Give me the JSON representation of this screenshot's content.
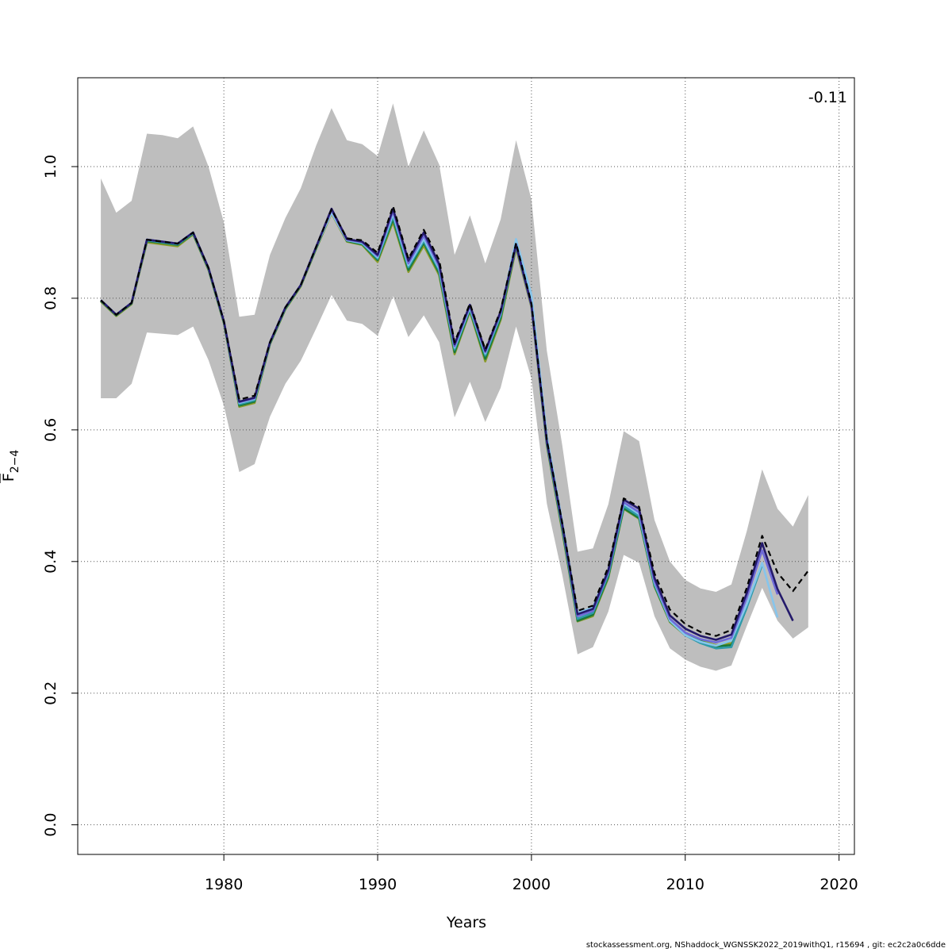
{
  "chart_data": {
    "type": "line",
    "xlabel": "Years",
    "ylabel": "F",
    "ylabel_sub": "2−4",
    "xlim": [
      1970.5,
      2021
    ],
    "ylim": [
      -0.045,
      1.135
    ],
    "xticks": [
      1980,
      1990,
      2000,
      2010,
      2020
    ],
    "xtick_labels": [
      "1980",
      "1990",
      "2000",
      "2010",
      "2020"
    ],
    "yticks": [
      0.0,
      0.2,
      0.4,
      0.6,
      0.8,
      1.0
    ],
    "ytick_labels": [
      "0.0",
      "0.2",
      "0.4",
      "0.6",
      "0.8",
      "1.0"
    ],
    "grid": true,
    "annotation": "-0.11",
    "band": {
      "color": "#bebebe",
      "x": [
        1972,
        1973,
        1974,
        1975,
        1976,
        1977,
        1978,
        1979,
        1980,
        1981,
        1982,
        1983,
        1984,
        1985,
        1986,
        1987,
        1988,
        1989,
        1990,
        1991,
        1992,
        1993,
        1994,
        1995,
        1996,
        1997,
        1998,
        1999,
        2000,
        2001,
        2002,
        2003,
        2004,
        2005,
        2006,
        2007,
        2008,
        2009,
        2010,
        2011,
        2012,
        2013,
        2014,
        2015,
        2016,
        2017,
        2018
      ],
      "upper": [
        0.982,
        0.93,
        0.948,
        1.05,
        1.048,
        1.043,
        1.061,
        1.0,
        0.915,
        0.772,
        0.775,
        0.866,
        0.922,
        0.967,
        1.032,
        1.089,
        1.04,
        1.034,
        1.016,
        1.096,
        1.0,
        1.055,
        1.003,
        0.866,
        0.926,
        0.853,
        0.92,
        1.04,
        0.95,
        0.72,
        0.577,
        0.415,
        0.42,
        0.487,
        0.598,
        0.583,
        0.463,
        0.4,
        0.372,
        0.359,
        0.354,
        0.365,
        0.446,
        0.54,
        0.48,
        0.453,
        0.501
      ],
      "lower": [
        0.648,
        0.648,
        0.67,
        0.748,
        0.746,
        0.744,
        0.757,
        0.706,
        0.637,
        0.536,
        0.548,
        0.62,
        0.67,
        0.705,
        0.754,
        0.805,
        0.766,
        0.761,
        0.743,
        0.803,
        0.741,
        0.774,
        0.733,
        0.619,
        0.673,
        0.612,
        0.664,
        0.757,
        0.678,
        0.488,
        0.38,
        0.259,
        0.27,
        0.324,
        0.41,
        0.398,
        0.317,
        0.268,
        0.251,
        0.24,
        0.234,
        0.242,
        0.302,
        0.36,
        0.31,
        0.283,
        0.3
      ]
    },
    "series": [
      {
        "color": "#000000",
        "dashed": true,
        "x": [
          1972,
          1973,
          1974,
          1975,
          1976,
          1977,
          1978,
          1979,
          1980,
          1981,
          1982,
          1983,
          1984,
          1985,
          1986,
          1987,
          1988,
          1989,
          1990,
          1991,
          1992,
          1993,
          1994,
          1995,
          1996,
          1997,
          1998,
          1999,
          2000,
          2001,
          2002,
          2003,
          2004,
          2005,
          2006,
          2007,
          2008,
          2009,
          2010,
          2011,
          2012,
          2013,
          2014,
          2015,
          2016,
          2017,
          2018
        ],
        "values": [
          0.797,
          0.775,
          0.793,
          0.889,
          0.886,
          0.883,
          0.9,
          0.846,
          0.765,
          0.646,
          0.652,
          0.733,
          0.786,
          0.82,
          0.878,
          0.935,
          0.891,
          0.888,
          0.869,
          0.94,
          0.86,
          0.904,
          0.858,
          0.733,
          0.792,
          0.722,
          0.782,
          0.884,
          0.792,
          0.585,
          0.459,
          0.325,
          0.333,
          0.392,
          0.496,
          0.483,
          0.382,
          0.327,
          0.305,
          0.293,
          0.287,
          0.296,
          0.36,
          0.439,
          0.383,
          0.355,
          0.386
        ]
      },
      {
        "color": "#241a6b",
        "dashed": false,
        "x": [
          1972,
          1973,
          1974,
          1975,
          1976,
          1977,
          1978,
          1979,
          1980,
          1981,
          1982,
          1983,
          1984,
          1985,
          1986,
          1987,
          1988,
          1989,
          1990,
          1991,
          1992,
          1993,
          1994,
          1995,
          1996,
          1997,
          1998,
          1999,
          2000,
          2001,
          2002,
          2003,
          2004,
          2005,
          2006,
          2007,
          2008,
          2009,
          2010,
          2011,
          2012,
          2013,
          2014,
          2015,
          2016,
          2017
        ],
        "values": [
          0.797,
          0.775,
          0.793,
          0.889,
          0.886,
          0.883,
          0.9,
          0.846,
          0.765,
          0.643,
          0.649,
          0.733,
          0.786,
          0.82,
          0.878,
          0.936,
          0.89,
          0.886,
          0.866,
          0.936,
          0.857,
          0.9,
          0.852,
          0.73,
          0.79,
          0.72,
          0.78,
          0.882,
          0.79,
          0.583,
          0.457,
          0.32,
          0.328,
          0.387,
          0.494,
          0.48,
          0.375,
          0.318,
          0.298,
          0.287,
          0.281,
          0.289,
          0.352,
          0.428,
          0.358,
          0.31
        ]
      },
      {
        "color": "#6e6ad8",
        "dashed": false,
        "x": [
          1972,
          1973,
          1974,
          1975,
          1976,
          1977,
          1978,
          1979,
          1980,
          1981,
          1982,
          1983,
          1984,
          1985,
          1986,
          1987,
          1988,
          1989,
          1990,
          1991,
          1992,
          1993,
          1994,
          1995,
          1996,
          1997,
          1998,
          1999,
          2000,
          2001,
          2002,
          2003,
          2004,
          2005,
          2006,
          2007,
          2008,
          2009,
          2010,
          2011,
          2012,
          2013,
          2014,
          2015,
          2016
        ],
        "values": [
          0.797,
          0.775,
          0.793,
          0.889,
          0.886,
          0.883,
          0.9,
          0.846,
          0.765,
          0.642,
          0.648,
          0.733,
          0.786,
          0.82,
          0.878,
          0.934,
          0.889,
          0.885,
          0.864,
          0.932,
          0.853,
          0.895,
          0.848,
          0.727,
          0.788,
          0.718,
          0.778,
          0.88,
          0.788,
          0.581,
          0.455,
          0.317,
          0.325,
          0.384,
          0.49,
          0.475,
          0.37,
          0.313,
          0.292,
          0.282,
          0.277,
          0.284,
          0.345,
          0.417,
          0.35
        ]
      },
      {
        "color": "#86c5ec",
        "dashed": false,
        "x": [
          1972,
          1973,
          1974,
          1975,
          1976,
          1977,
          1978,
          1979,
          1980,
          1981,
          1982,
          1983,
          1984,
          1985,
          1986,
          1987,
          1988,
          1989,
          1990,
          1991,
          1992,
          1993,
          1994,
          1995,
          1996,
          1997,
          1998,
          1999,
          2000,
          2001,
          2002,
          2003,
          2004,
          2005,
          2006,
          2007,
          2008,
          2009,
          2010,
          2011,
          2012,
          2013,
          2014,
          2015,
          2016
        ],
        "values": [
          0.797,
          0.775,
          0.793,
          0.889,
          0.886,
          0.883,
          0.9,
          0.846,
          0.765,
          0.641,
          0.647,
          0.733,
          0.786,
          0.82,
          0.878,
          0.93,
          0.888,
          0.884,
          0.862,
          0.928,
          0.85,
          0.89,
          0.845,
          0.725,
          0.786,
          0.716,
          0.777,
          0.89,
          0.805,
          0.59,
          0.46,
          0.322,
          0.33,
          0.388,
          0.488,
          0.472,
          0.368,
          0.31,
          0.288,
          0.278,
          0.272,
          0.28,
          0.335,
          0.398,
          0.315
        ]
      },
      {
        "color": "#2e9aa8",
        "dashed": false,
        "x": [
          1972,
          1973,
          1974,
          1975,
          1976,
          1977,
          1978,
          1979,
          1980,
          1981,
          1982,
          1983,
          1984,
          1985,
          1986,
          1987,
          1988,
          1989,
          1990,
          1991,
          1992,
          1993,
          1994,
          1995,
          1996,
          1997,
          1998,
          1999,
          2000,
          2001,
          2002,
          2003,
          2004,
          2005,
          2006,
          2007,
          2008,
          2009,
          2010,
          2011,
          2012,
          2013,
          2014,
          2015
        ],
        "values": [
          0.797,
          0.775,
          0.793,
          0.888,
          0.885,
          0.882,
          0.899,
          0.845,
          0.764,
          0.639,
          0.645,
          0.732,
          0.785,
          0.82,
          0.877,
          0.932,
          0.888,
          0.883,
          0.86,
          0.924,
          0.847,
          0.887,
          0.842,
          0.722,
          0.784,
          0.713,
          0.774,
          0.883,
          0.79,
          0.58,
          0.452,
          0.313,
          0.322,
          0.38,
          0.484,
          0.469,
          0.365,
          0.311,
          0.288,
          0.276,
          0.268,
          0.27,
          0.33,
          0.395
        ]
      },
      {
        "color": "#1a7a3a",
        "dashed": false,
        "x": [
          1972,
          1973,
          1974,
          1975,
          1976,
          1977,
          1978,
          1979,
          1980,
          1981,
          1982,
          1983,
          1984,
          1985,
          1986,
          1987,
          1988,
          1989,
          1990,
          1991,
          1992,
          1993,
          1994,
          1995,
          1996,
          1997,
          1998,
          1999,
          2000,
          2001,
          2002,
          2003,
          2004,
          2005,
          2006,
          2007,
          2008,
          2009,
          2010,
          2011,
          2012,
          2013,
          2014
        ],
        "values": [
          0.796,
          0.774,
          0.792,
          0.887,
          0.884,
          0.881,
          0.898,
          0.844,
          0.763,
          0.637,
          0.643,
          0.731,
          0.784,
          0.819,
          0.876,
          0.931,
          0.887,
          0.882,
          0.858,
          0.92,
          0.843,
          0.884,
          0.838,
          0.718,
          0.782,
          0.708,
          0.77,
          0.879,
          0.788,
          0.578,
          0.449,
          0.31,
          0.319,
          0.377,
          0.481,
          0.466,
          0.363,
          0.309,
          0.288,
          0.279,
          0.271,
          0.273,
          0.33
        ]
      },
      {
        "color": "#8a9a2a",
        "dashed": false,
        "x": [
          1972,
          1973,
          1974,
          1975,
          1976,
          1977,
          1978,
          1979,
          1980,
          1981,
          1982,
          1983,
          1984,
          1985,
          1986,
          1987,
          1988,
          1989,
          1990,
          1991,
          1992,
          1993,
          1994,
          1995,
          1996,
          1997,
          1998,
          1999,
          2000,
          2001,
          2002,
          2003,
          2004,
          2005,
          2006,
          2007,
          2008,
          2009,
          2010,
          2011,
          2012,
          2013
        ],
        "values": [
          0.795,
          0.773,
          0.791,
          0.885,
          0.882,
          0.879,
          0.897,
          0.843,
          0.762,
          0.635,
          0.641,
          0.73,
          0.783,
          0.818,
          0.875,
          0.929,
          0.886,
          0.881,
          0.855,
          0.916,
          0.84,
          0.88,
          0.835,
          0.715,
          0.78,
          0.704,
          0.767,
          0.876,
          0.786,
          0.576,
          0.446,
          0.309,
          0.317,
          0.375,
          0.48,
          0.465,
          0.362,
          0.308,
          0.288,
          0.28,
          0.273,
          0.276
        ]
      }
    ]
  },
  "footer": "stockassessment.org, NShaddock_WGNSSK2022_2019withQ1, r15694 , git: ec2c2a0c6dde"
}
